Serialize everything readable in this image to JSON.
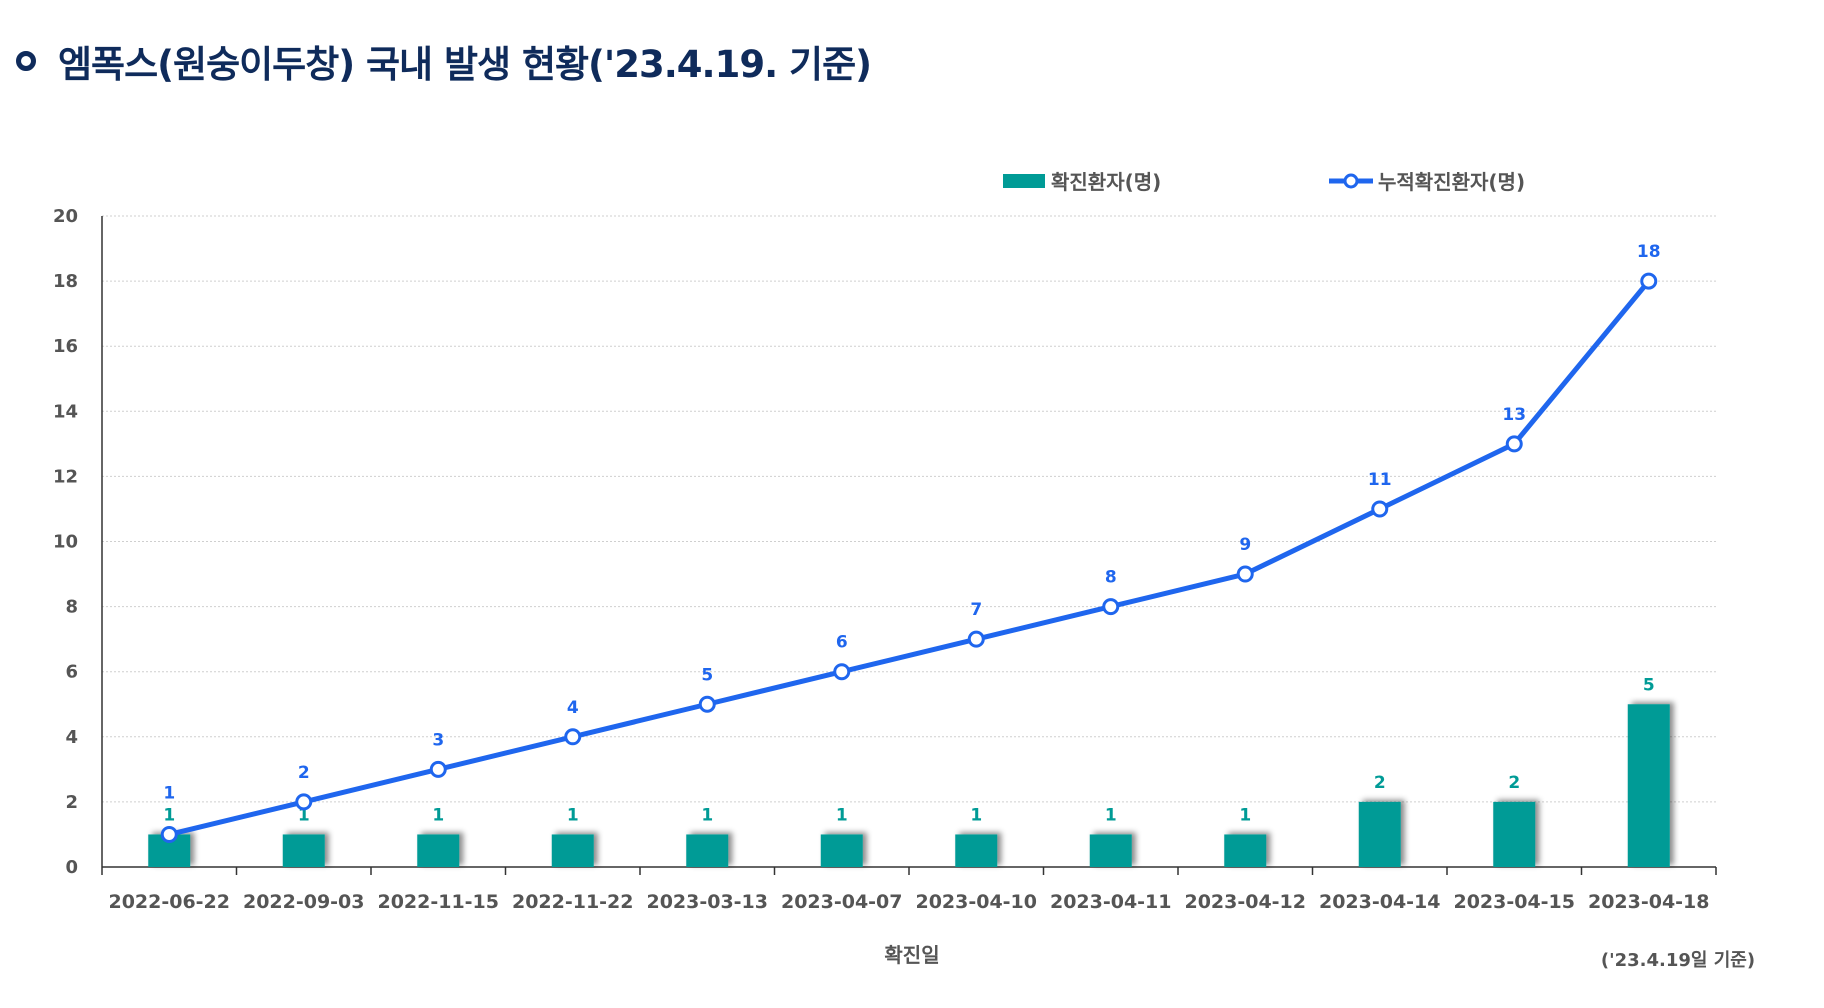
{
  "title": "엠폭스(원숭이두창) 국내 발생 현황('23.4.19. 기준)",
  "colors": {
    "bar": "#009b96",
    "line": "#1f66ee",
    "title": "#0f2b5b"
  },
  "chart_data": {
    "type": "bar+line",
    "categories": [
      "2022-06-22",
      "2022-09-03",
      "2022-11-15",
      "2022-11-22",
      "2023-03-13",
      "2023-04-07",
      "2023-04-10",
      "2023-04-11",
      "2023-04-12",
      "2023-04-14",
      "2023-04-15",
      "2023-04-18"
    ],
    "series": [
      {
        "name": "확진환자(명)",
        "type": "bar",
        "values": [
          1,
          1,
          1,
          1,
          1,
          1,
          1,
          1,
          1,
          2,
          2,
          5
        ]
      },
      {
        "name": "누적확진환자(명)",
        "type": "line",
        "values": [
          1,
          2,
          3,
          4,
          5,
          6,
          7,
          8,
          9,
          11,
          13,
          18
        ]
      }
    ],
    "xlabel": "확진일",
    "ylabel": "",
    "ylim": [
      0,
      20
    ],
    "yticks": [
      0,
      2,
      4,
      6,
      8,
      10,
      12,
      14,
      16,
      18,
      20
    ],
    "grid": true,
    "legend": "top-right",
    "note": "('23.4.19일 기준)"
  }
}
